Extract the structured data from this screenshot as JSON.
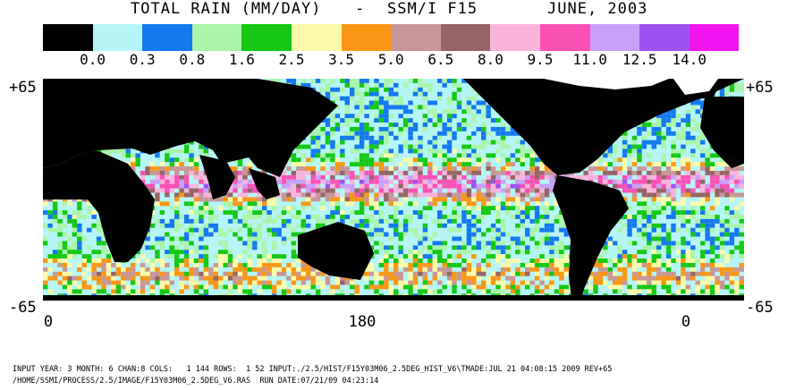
{
  "title": {
    "main": "TOTAL RAIN (MM/DAY)",
    "dash": "-",
    "sensor": "SSM/I F15",
    "date": "JUNE, 2003"
  },
  "legend": {
    "colors": [
      "#000000",
      "#b6f5f5",
      "#1478f0",
      "#aaf5aa",
      "#14c814",
      "#fafaaa",
      "#fa9614",
      "#c89696",
      "#966464",
      "#fab4dc",
      "#fa50b4",
      "#c8a0fa",
      "#a050f0",
      "#f014f0"
    ],
    "labels": [
      "0.0",
      "0.3",
      "0.8",
      "1.6",
      "2.5",
      "3.5",
      "5.0",
      "6.5",
      "8.0",
      "9.5",
      "11.0",
      "12.5",
      "14.0"
    ]
  },
  "axes": {
    "lat_top_left": "+65",
    "lat_top_right": "+65",
    "lat_bottom_left": "-65",
    "lat_bottom_right": "-65",
    "lon_left": "0",
    "lon_mid": "180",
    "lon_right": "0"
  },
  "footer": {
    "line1": "INPUT YEAR: 3 MONTH: 6 CHAN:8 COLS:   1 144 ROWS:  1 52 INPUT:./2.5/HIST/F15Y03M06_2.5DEG_HIST_V6\\TMADE:JUL 21 04:08:15 2009 REV+65",
    "line2": "/HOME/SSMI/PROCESS/2.5/IMAGE/F15Y03M06_2.5DEG_V6.RAS  RUN DATE:07/21/09 04:23:14"
  }
}
